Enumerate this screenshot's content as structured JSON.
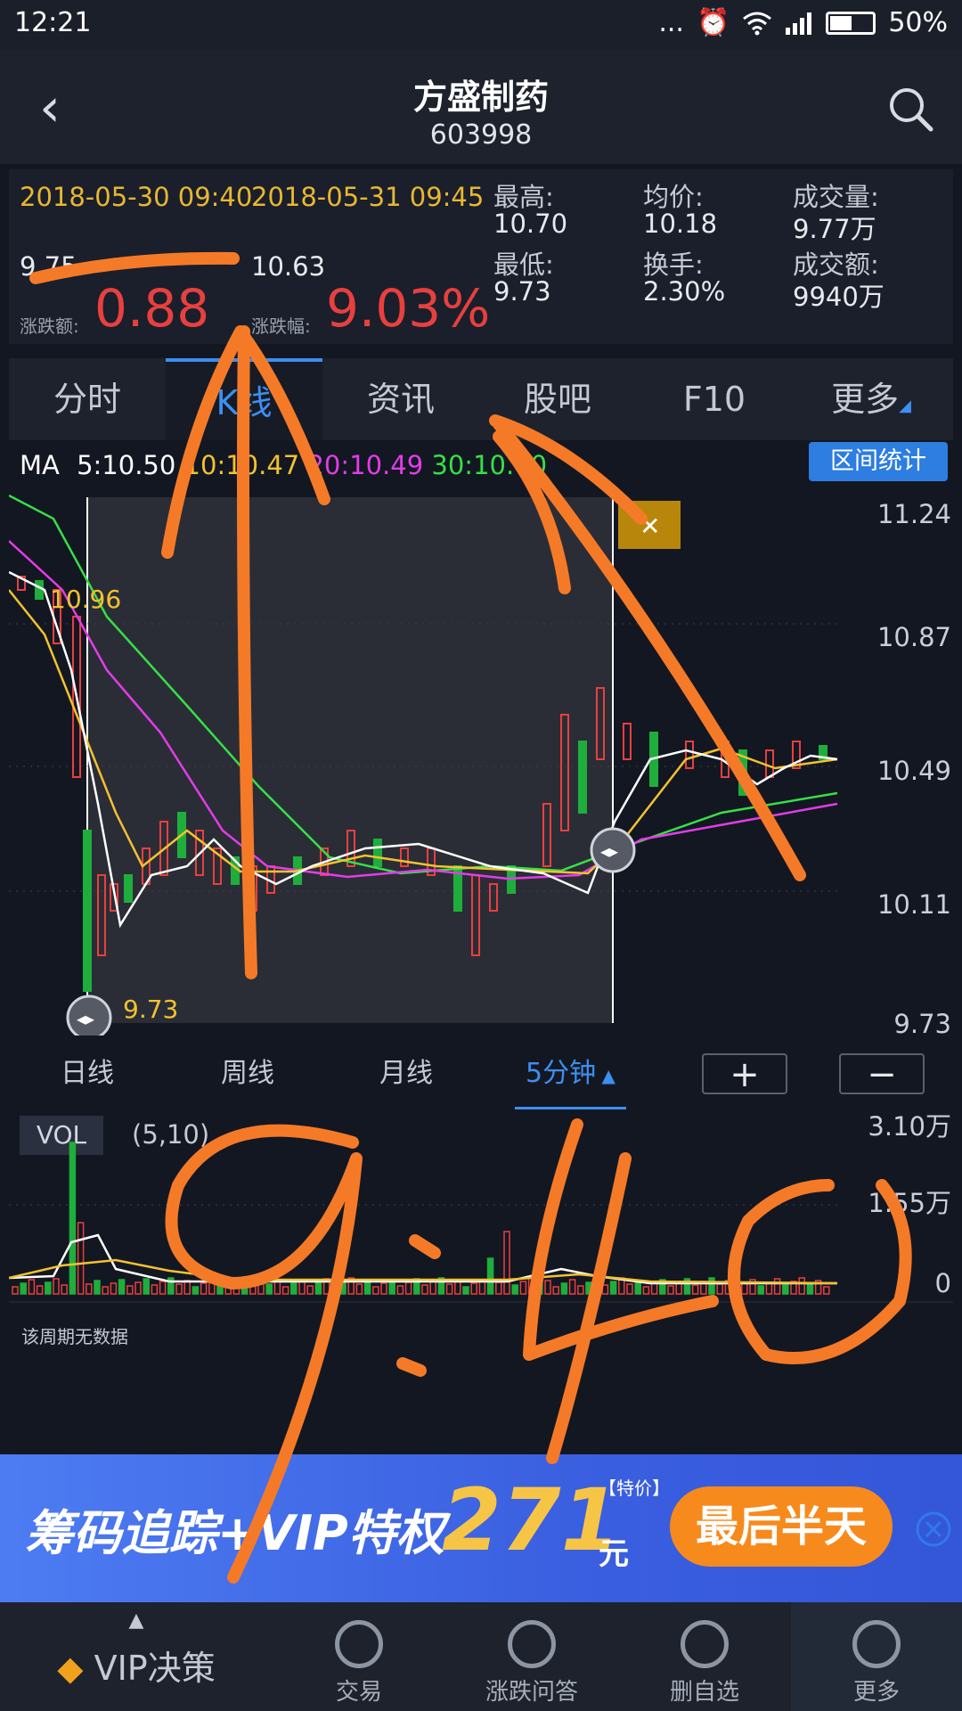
{
  "status_bar": {
    "time": "12:21",
    "dots": "...",
    "battery": "50%"
  },
  "header": {
    "back_icon": "‹",
    "title": "方盛制药",
    "code": "603998"
  },
  "quote": {
    "start_time": "2018-05-30 09:40",
    "end_time": "2018-05-31 09:45",
    "start_price": "9.75",
    "end_price": "10.63",
    "change_label": "涨跌额:",
    "change_value": "0.88",
    "pct_label": "涨跌幅:",
    "pct_value": "9.03%",
    "stats": [
      {
        "label": "最高:",
        "value": "10.70"
      },
      {
        "label": "均价:",
        "value": "10.18"
      },
      {
        "label": "成交量:",
        "value": "9.77万"
      },
      {
        "label": "最低:",
        "value": "9.73"
      },
      {
        "label": "换手:",
        "value": "2.30%"
      },
      {
        "label": "成交额:",
        "value": "9940万"
      }
    ]
  },
  "tabs": [
    "分时",
    "K线",
    "资讯",
    "股吧",
    "F10",
    "更多"
  ],
  "ma": {
    "label": "MA",
    "ma5": "5:10.50",
    "ma10": "10:10.47",
    "ma20": "20:10.49",
    "ma30": "30:10.40"
  },
  "range_stat_button": "区间统计",
  "price_axis": [
    "11.24",
    "10.87",
    "10.49",
    "10.11",
    "9.73"
  ],
  "price_marks": {
    "high_label": "10.96",
    "low_label": "9.73"
  },
  "close_icon": "✕",
  "periods": [
    "日线",
    "周线",
    "月线",
    "5分钟"
  ],
  "zoom": {
    "plus": "+",
    "minus": "−"
  },
  "volume": {
    "tag": "VOL",
    "params": "(5,10)",
    "axis": [
      "3.10万",
      "1.55万",
      "0"
    ],
    "no_data": "该周期无数据"
  },
  "banner": {
    "text1": "筹码追踪+VIP特权",
    "price": "271",
    "special": "【特价】",
    "unit": "元",
    "cta": "最后半天"
  },
  "nav": [
    {
      "label": "VIP决策"
    },
    {
      "label": "交易"
    },
    {
      "label": "涨跌问答"
    },
    {
      "label": "删自选"
    },
    {
      "label": "更多"
    }
  ],
  "annotation": {
    "text": "9:40"
  },
  "colors": {
    "up": "#e8403e",
    "down": "#1fae3c",
    "accent": "#3d8ff0",
    "ma5": "#ffffff",
    "ma10": "#f2c230",
    "ma20": "#e33ce8",
    "ma30": "#36e046",
    "pen": "#f57a28"
  }
}
